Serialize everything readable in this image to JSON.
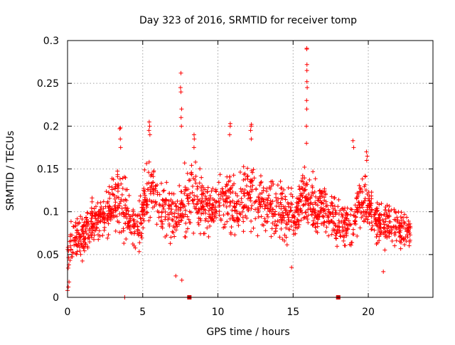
{
  "chart_data": {
    "type": "scatter",
    "title": "Day 323 of 2016, SRMTID for receiver tomp",
    "xlabel": "GPS time / hours",
    "ylabel": "SRMTID / TECUs",
    "xlim": [
      0,
      24.3
    ],
    "ylim": [
      0,
      0.3
    ],
    "xticks": [
      0,
      5,
      10,
      15,
      20
    ],
    "xtick_labels": [
      "0",
      "5",
      "10",
      "15",
      "20"
    ],
    "yticks": [
      0,
      0.05,
      0.1,
      0.15,
      0.2,
      0.25,
      0.3
    ],
    "ytick_labels": [
      "0",
      "0.05",
      "0.1",
      "0.15",
      "0.2",
      "0.25",
      "0.3"
    ],
    "grid": true,
    "series_color": "#ff0000",
    "marker_color": "#cc0000",
    "envelope": [
      [
        0.0,
        0.02,
        0.08
      ],
      [
        0.3,
        0.03,
        0.1
      ],
      [
        0.7,
        0.04,
        0.11
      ],
      [
        1.2,
        0.04,
        0.11
      ],
      [
        1.7,
        0.05,
        0.12
      ],
      [
        2.2,
        0.06,
        0.12
      ],
      [
        2.7,
        0.06,
        0.14
      ],
      [
        3.0,
        0.06,
        0.17
      ],
      [
        3.5,
        0.06,
        0.17
      ],
      [
        3.9,
        0.05,
        0.16
      ],
      [
        4.3,
        0.05,
        0.12
      ],
      [
        4.8,
        0.05,
        0.12
      ],
      [
        5.2,
        0.06,
        0.17
      ],
      [
        5.6,
        0.09,
        0.18
      ],
      [
        6.0,
        0.07,
        0.15
      ],
      [
        6.5,
        0.06,
        0.15
      ],
      [
        7.0,
        0.05,
        0.14
      ],
      [
        7.4,
        0.05,
        0.15
      ],
      [
        7.8,
        0.05,
        0.17
      ],
      [
        8.3,
        0.06,
        0.18
      ],
      [
        8.8,
        0.06,
        0.16
      ],
      [
        9.3,
        0.05,
        0.15
      ],
      [
        9.8,
        0.06,
        0.15
      ],
      [
        10.3,
        0.06,
        0.16
      ],
      [
        10.8,
        0.06,
        0.17
      ],
      [
        11.3,
        0.06,
        0.15
      ],
      [
        11.8,
        0.06,
        0.17
      ],
      [
        12.3,
        0.06,
        0.18
      ],
      [
        12.8,
        0.06,
        0.16
      ],
      [
        13.3,
        0.06,
        0.15
      ],
      [
        13.8,
        0.06,
        0.15
      ],
      [
        14.3,
        0.05,
        0.15
      ],
      [
        14.8,
        0.04,
        0.14
      ],
      [
        15.2,
        0.05,
        0.14
      ],
      [
        15.6,
        0.07,
        0.16
      ],
      [
        16.0,
        0.07,
        0.17
      ],
      [
        16.5,
        0.06,
        0.15
      ],
      [
        17.0,
        0.06,
        0.14
      ],
      [
        17.5,
        0.06,
        0.13
      ],
      [
        18.0,
        0.05,
        0.12
      ],
      [
        18.5,
        0.05,
        0.12
      ],
      [
        19.0,
        0.05,
        0.13
      ],
      [
        19.4,
        0.06,
        0.15
      ],
      [
        19.8,
        0.07,
        0.16
      ],
      [
        20.3,
        0.06,
        0.13
      ],
      [
        20.8,
        0.05,
        0.12
      ],
      [
        21.3,
        0.05,
        0.12
      ],
      [
        21.8,
        0.05,
        0.11
      ],
      [
        22.3,
        0.05,
        0.11
      ],
      [
        22.8,
        0.05,
        0.1
      ]
    ],
    "spikes": [
      {
        "x": 3.5,
        "values": [
          0.175,
          0.185,
          0.197,
          0.198
        ]
      },
      {
        "x": 5.45,
        "values": [
          0.19,
          0.195,
          0.2,
          0.205
        ]
      },
      {
        "x": 7.55,
        "values": [
          0.2,
          0.21,
          0.22,
          0.24,
          0.245,
          0.262
        ]
      },
      {
        "x": 8.4,
        "values": [
          0.175,
          0.185,
          0.19
        ]
      },
      {
        "x": 10.8,
        "values": [
          0.19,
          0.2,
          0.203
        ]
      },
      {
        "x": 12.2,
        "values": [
          0.185,
          0.195,
          0.2,
          0.202
        ]
      },
      {
        "x": 15.9,
        "values": [
          0.18,
          0.2,
          0.22,
          0.23,
          0.245,
          0.252,
          0.265,
          0.272,
          0.29,
          0.291
        ]
      },
      {
        "x": 19.9,
        "values": [
          0.16,
          0.165,
          0.17
        ]
      },
      {
        "x": 19.0,
        "values": [
          0.175,
          0.183
        ]
      }
    ],
    "low_points": [
      {
        "x": 0.0,
        "y": 0.008
      },
      {
        "x": 0.05,
        "y": 0.012
      },
      {
        "x": 0.1,
        "y": 0.018
      },
      {
        "x": 3.8,
        "y": 0.0
      },
      {
        "x": 7.2,
        "y": 0.025
      },
      {
        "x": 7.6,
        "y": 0.02
      },
      {
        "x": 14.9,
        "y": 0.035
      },
      {
        "x": 21.0,
        "y": 0.03
      }
    ],
    "gap_markers": [
      {
        "x": 8.1,
        "y": 0.0
      },
      {
        "x": 18.0,
        "y": 0.0
      }
    ]
  }
}
